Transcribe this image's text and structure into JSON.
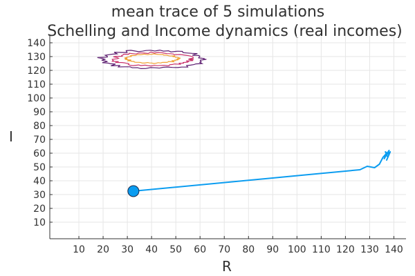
{
  "chart_data": {
    "type": "line",
    "title_lines": [
      "mean trace of 5 simulations",
      "Schelling and Income dynamics (real incomes)"
    ],
    "xlabel": "R",
    "ylabel": "I",
    "xlim": [
      -2,
      145
    ],
    "ylim": [
      -2,
      145
    ],
    "x_ticks": [
      10,
      20,
      30,
      40,
      50,
      60,
      70,
      80,
      90,
      100,
      110,
      120,
      130,
      140
    ],
    "y_ticks": [
      10,
      20,
      30,
      40,
      50,
      60,
      70,
      80,
      90,
      100,
      110,
      120,
      130,
      140
    ],
    "grid": true,
    "legend": "none",
    "trace": {
      "color": "#0a9cf0",
      "start_point": {
        "x": 32.5,
        "y": 32.5
      },
      "points": [
        {
          "x": 32.5,
          "y": 32.5
        },
        {
          "x": 126,
          "y": 48
        },
        {
          "x": 129,
          "y": 50.5
        },
        {
          "x": 132,
          "y": 49.5
        },
        {
          "x": 134,
          "y": 52
        },
        {
          "x": 135.5,
          "y": 57
        },
        {
          "x": 137,
          "y": 60
        },
        {
          "x": 136,
          "y": 56
        },
        {
          "x": 138,
          "y": 62
        },
        {
          "x": 136.5,
          "y": 58
        },
        {
          "x": 138.5,
          "y": 61
        },
        {
          "x": 137,
          "y": 55
        },
        {
          "x": 138,
          "y": 59
        },
        {
          "x": 136.5,
          "y": 61
        },
        {
          "x": 137.5,
          "y": 57
        }
      ]
    },
    "contours": [
      {
        "level": "outer",
        "color": "#5a1a6e",
        "cx": 40.5,
        "cy": 128,
        "rx": 21,
        "ry": 6.5
      },
      {
        "level": "middle",
        "color": "#c8306a",
        "cx": 40.5,
        "cy": 128,
        "rx": 16,
        "ry": 4.8
      },
      {
        "level": "inner",
        "color": "#f0a030",
        "cx": 40.5,
        "cy": 128.5,
        "rx": 10.5,
        "ry": 3.2
      }
    ]
  }
}
